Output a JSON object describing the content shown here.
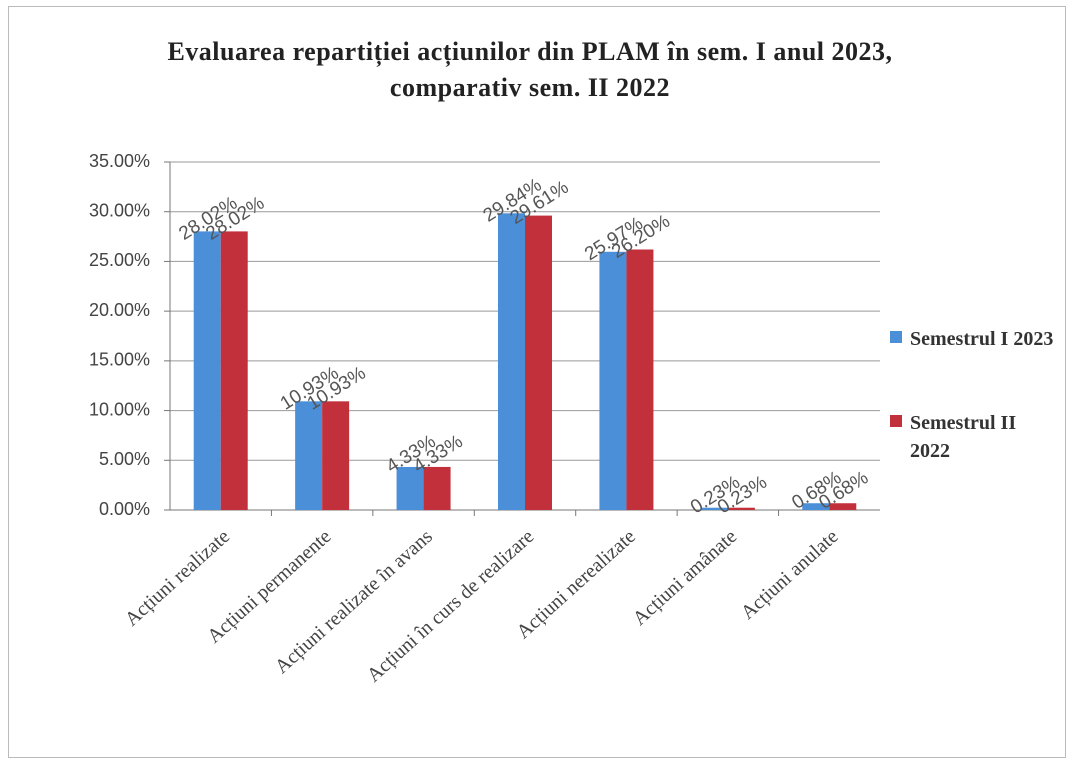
{
  "chart_data": {
    "type": "bar",
    "title": "Evaluarea repartiției acțiunilor din PLAM în sem. I anul 2023, comparativ sem. II 2022",
    "categories": [
      "Acțiuni realizate",
      "Acțiuni permanente",
      "Acțiuni realizate în avans",
      "Acțiuni în curs de realizare",
      "Acțiuni nerealizate",
      "Acțiuni amânate",
      "Acțiuni anulate"
    ],
    "series": [
      {
        "name": "Semestrul I 2023",
        "color": "#4a8fd8",
        "values": [
          28.02,
          10.93,
          4.33,
          29.84,
          25.97,
          0.23,
          0.68
        ],
        "value_labels": [
          "28.02%",
          "10.93%",
          "4.33%",
          "29.84%",
          "25.97%",
          "0.23%",
          "0.68%"
        ]
      },
      {
        "name": "Semestrul II 2022",
        "color": "#c2303c",
        "values": [
          28.02,
          10.93,
          4.33,
          29.61,
          26.2,
          0.23,
          0.68
        ],
        "value_labels": [
          "28.02%",
          "10.93%",
          "4.33%",
          "29.61%",
          "26.20%",
          "0.23%",
          "0.68%"
        ]
      }
    ],
    "ylim": [
      0,
      35
    ],
    "yticks": [
      {
        "value": 0,
        "label": "0.00%"
      },
      {
        "value": 5,
        "label": "5.00%"
      },
      {
        "value": 10,
        "label": "10.00%"
      },
      {
        "value": 15,
        "label": "15.00%"
      },
      {
        "value": 20,
        "label": "20.00%"
      },
      {
        "value": 25,
        "label": "25.00%"
      },
      {
        "value": 30,
        "label": "30.00%"
      },
      {
        "value": 35,
        "label": "35.00%"
      }
    ],
    "grid": true,
    "legend": "right"
  }
}
